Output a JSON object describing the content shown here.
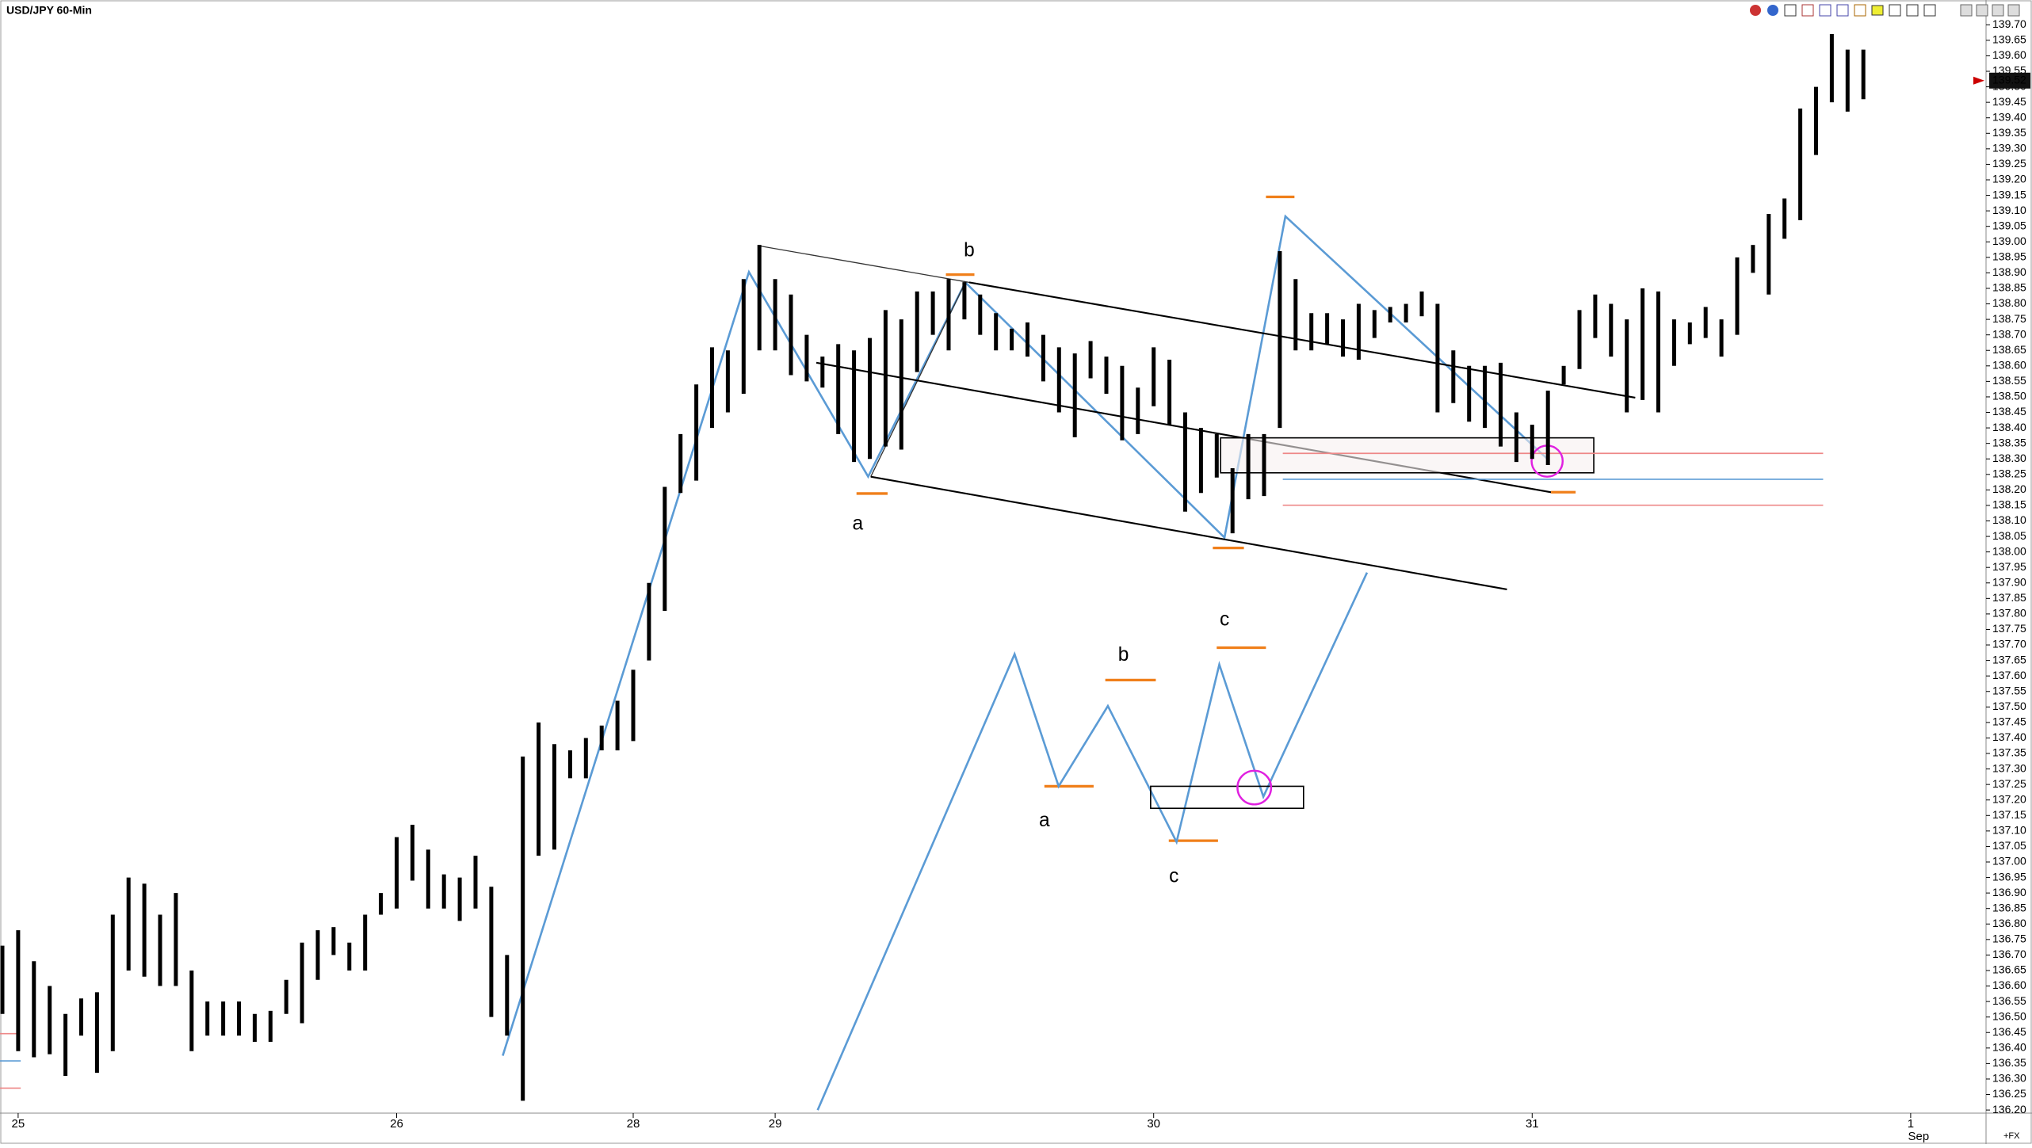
{
  "chart_data": {
    "type": "hilo",
    "title": "USD/JPY 60-Min",
    "color": "#000000",
    "categories": [
      null,
      "25",
      null,
      null,
      null,
      null,
      null,
      null,
      null,
      null,
      null,
      null,
      null,
      null,
      null,
      null,
      null,
      null,
      null,
      null,
      null,
      null,
      null,
      null,
      null,
      "26",
      null,
      null,
      null,
      null,
      null,
      null,
      null,
      null,
      null,
      null,
      null,
      null,
      null,
      null,
      "28",
      null,
      null,
      null,
      null,
      null,
      null,
      null,
      null,
      "29",
      null,
      null,
      null,
      null,
      null,
      null,
      null,
      null,
      null,
      null,
      null,
      null,
      null,
      null,
      null,
      null,
      null,
      null,
      null,
      null,
      null,
      null,
      null,
      "30",
      null,
      null,
      null,
      null,
      null,
      null,
      null,
      null,
      null,
      null,
      null,
      null,
      null,
      null,
      null,
      null,
      null,
      null,
      null,
      null,
      null,
      null,
      null,
      "31",
      null,
      null,
      null,
      null,
      null,
      null,
      null,
      null,
      null,
      null,
      null,
      null,
      null,
      null,
      null,
      null,
      null,
      null,
      null,
      null,
      null,
      null,
      null,
      "1"
    ],
    "month_label": "Sep",
    "high": [
      136.73,
      136.78,
      136.68,
      136.6,
      136.51,
      136.56,
      136.58,
      136.83,
      136.95,
      136.93,
      136.83,
      136.9,
      136.65,
      136.55,
      136.55,
      136.55,
      136.51,
      136.52,
      136.62,
      136.74,
      136.78,
      136.79,
      136.74,
      136.83,
      136.9,
      137.08,
      137.12,
      137.04,
      136.96,
      136.95,
      137.02,
      136.92,
      136.7,
      137.34,
      137.45,
      137.38,
      137.36,
      137.4,
      137.44,
      137.52,
      137.62,
      137.9,
      138.21,
      138.38,
      138.54,
      138.66,
      138.65,
      138.88,
      138.99,
      138.88,
      138.83,
      138.7,
      138.63,
      138.67,
      138.65,
      138.69,
      138.78,
      138.75,
      138.84,
      138.84,
      138.88,
      138.87,
      138.83,
      138.77,
      138.72,
      138.74,
      138.7,
      138.66,
      138.64,
      138.68,
      138.63,
      138.6,
      138.53,
      138.66,
      138.62,
      138.45,
      138.4,
      138.38,
      138.27,
      138.38,
      138.38,
      138.97,
      138.88,
      138.77,
      138.77,
      138.75,
      138.8,
      138.78,
      138.79,
      138.8,
      138.84,
      138.8,
      138.65,
      138.6,
      138.6,
      138.61,
      138.45,
      138.41,
      138.52,
      138.6,
      138.78,
      138.83,
      138.8,
      138.75,
      138.85,
      138.84,
      138.75,
      138.74,
      138.79,
      138.75,
      138.95,
      138.99,
      139.09,
      139.14,
      139.43,
      139.5,
      139.67,
      139.62,
      139.62,
      null,
      null,
      null
    ],
    "low": [
      136.51,
      136.39,
      136.37,
      136.38,
      136.31,
      136.44,
      136.32,
      136.39,
      136.65,
      136.63,
      136.6,
      136.6,
      136.39,
      136.44,
      136.44,
      136.44,
      136.42,
      136.42,
      136.51,
      136.48,
      136.62,
      136.7,
      136.65,
      136.65,
      136.83,
      136.85,
      136.94,
      136.85,
      136.85,
      136.81,
      136.85,
      136.5,
      136.44,
      136.23,
      137.02,
      137.04,
      137.27,
      137.27,
      137.36,
      137.36,
      137.39,
      137.65,
      137.81,
      138.19,
      138.23,
      138.4,
      138.45,
      138.51,
      138.65,
      138.65,
      138.57,
      138.55,
      138.53,
      138.38,
      138.29,
      138.3,
      138.34,
      138.33,
      138.58,
      138.7,
      138.65,
      138.75,
      138.7,
      138.65,
      138.65,
      138.63,
      138.55,
      138.45,
      138.37,
      138.56,
      138.51,
      138.36,
      138.38,
      138.47,
      138.41,
      138.13,
      138.19,
      138.24,
      138.06,
      138.17,
      138.18,
      138.4,
      138.65,
      138.65,
      138.67,
      138.63,
      138.62,
      138.69,
      138.74,
      138.74,
      138.76,
      138.45,
      138.48,
      138.42,
      138.4,
      138.34,
      138.29,
      138.3,
      138.28,
      138.54,
      138.59,
      138.69,
      138.63,
      138.45,
      138.49,
      138.45,
      138.6,
      138.67,
      138.69,
      138.63,
      138.7,
      138.9,
      138.83,
      139.01,
      139.07,
      139.28,
      139.45,
      139.42,
      139.46,
      null,
      null,
      null
    ],
    "ylim": [
      136.19,
      139.78
    ],
    "yticks": [
      {
        "value": 136.2,
        "label": "136.20"
      },
      136.25,
      {
        "value": 136.3,
        "label": "136.30"
      },
      136.35,
      {
        "value": 136.4,
        "label": "136.40"
      },
      136.45,
      {
        "value": 136.5,
        "label": "136.50"
      },
      136.55,
      {
        "value": 136.6,
        "label": "136.60"
      },
      136.65,
      {
        "value": 136.7,
        "label": "136.70"
      },
      136.75,
      {
        "value": 136.8,
        "label": "136.80"
      },
      136.85,
      {
        "value": 136.9,
        "label": "136.90"
      },
      136.95,
      {
        "value": 137,
        "label": "137.00"
      },
      137.05,
      {
        "value": 137.1,
        "label": "137.10"
      },
      137.15,
      {
        "value": 137.2,
        "label": "137.20"
      },
      137.25,
      {
        "value": 137.3,
        "label": "137.30"
      },
      137.35,
      {
        "value": 137.4,
        "label": "137.40"
      },
      137.45,
      {
        "value": 137.5,
        "label": "137.50"
      },
      137.55,
      {
        "value": 137.6,
        "label": "137.60"
      },
      137.65,
      {
        "value": 137.7,
        "label": "137.70"
      },
      137.75,
      {
        "value": 137.8,
        "label": "137.80"
      },
      137.85,
      {
        "value": 137.9,
        "label": "137.90"
      },
      137.95,
      {
        "value": 138,
        "label": "138.00"
      },
      138.05,
      {
        "value": 138.1,
        "label": "138.10"
      },
      138.15,
      {
        "value": 138.2,
        "label": "138.20"
      },
      138.25,
      {
        "value": 138.3,
        "label": "138.30"
      },
      138.35,
      {
        "value": 138.4,
        "label": "138.40"
      },
      138.45,
      {
        "value": 138.5,
        "label": "138.50"
      },
      138.55,
      {
        "value": 138.6,
        "label": "138.60"
      },
      138.65,
      {
        "value": 138.7,
        "label": "138.70"
      },
      138.75,
      {
        "value": 138.8,
        "label": "138.80"
      },
      138.85,
      {
        "value": 138.9,
        "label": "138.90"
      },
      138.95,
      {
        "value": 139,
        "label": "139.00"
      },
      139.05,
      {
        "value": 139.1,
        "label": "139.10"
      },
      139.15,
      {
        "value": 139.2,
        "label": "139.20"
      },
      139.25,
      {
        "value": 139.3,
        "label": "139.30"
      },
      139.35,
      {
        "value": 139.4,
        "label": "139.40"
      },
      139.45,
      {
        "value": 139.5,
        "label": "139.50"
      },
      139.55,
      {
        "value": 139.6,
        "label": "139.60"
      },
      139.65,
      {
        "value": 139.7,
        "label": "139.70"
      }
    ],
    "last_price": 139.52,
    "last_price_color": "#cc0000",
    "annotations": [
      "a",
      "b",
      "a",
      "b",
      "c",
      "c"
    ],
    "corner_label": "+FX"
  }
}
